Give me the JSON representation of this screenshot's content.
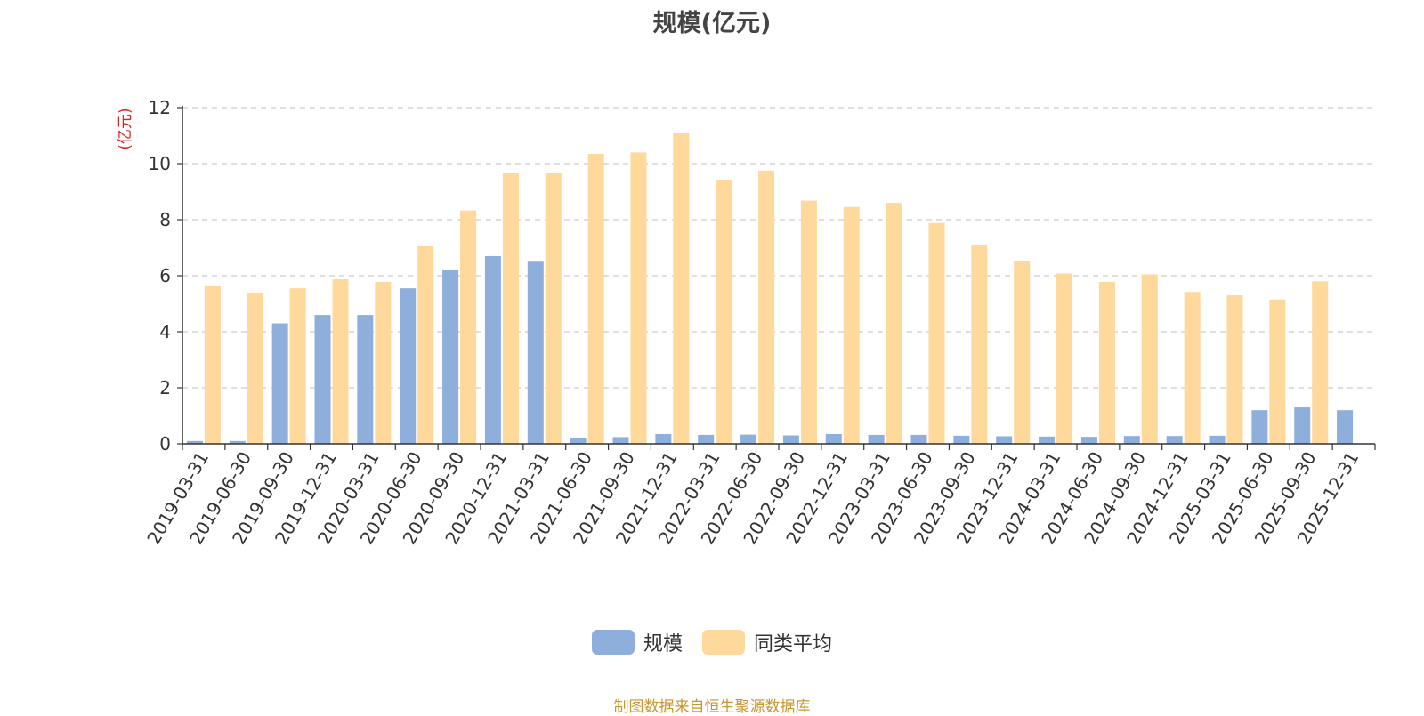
{
  "chart_data": {
    "type": "bar",
    "title": "规模(亿元)",
    "ylabel": "(亿元)",
    "ylim": [
      0,
      12
    ],
    "yticks": [
      0,
      2,
      4,
      6,
      8,
      10,
      12
    ],
    "grid": true,
    "legend_position": "bottom-center",
    "categories": [
      "2019-03-31",
      "2019-06-30",
      "2019-09-30",
      "2019-12-31",
      "2020-03-31",
      "2020-06-30",
      "2020-09-30",
      "2020-12-31",
      "2021-03-31",
      "2021-06-30",
      "2021-09-30",
      "2021-12-31",
      "2022-03-31",
      "2022-06-30",
      "2022-09-30",
      "2022-12-31",
      "2023-03-31",
      "2023-06-30",
      "2023-09-30",
      "2023-12-31",
      "2024-03-31",
      "2024-06-30",
      "2024-09-30",
      "2024-12-31",
      "2025-03-31",
      "2025-06-30",
      "2025-09-30",
      "2025-12-31"
    ],
    "series": [
      {
        "name": "规模",
        "color": "#8eaedb",
        "values": [
          0.1,
          0.1,
          4.3,
          4.6,
          4.6,
          5.55,
          6.2,
          6.7,
          6.5,
          0.22,
          0.24,
          0.35,
          0.32,
          0.33,
          0.3,
          0.35,
          0.32,
          0.32,
          0.29,
          0.27,
          0.26,
          0.25,
          0.28,
          0.28,
          0.29,
          1.2,
          1.3,
          1.2
        ]
      },
      {
        "name": "同类平均",
        "color": "#ffd89b",
        "values": [
          5.65,
          5.4,
          5.55,
          5.87,
          5.78,
          7.05,
          8.33,
          9.65,
          9.65,
          10.35,
          10.4,
          11.08,
          9.43,
          9.75,
          8.68,
          8.45,
          8.6,
          7.88,
          7.1,
          6.52,
          6.08,
          5.78,
          6.05,
          5.42,
          5.3,
          5.15,
          5.8,
          null
        ]
      }
    ]
  },
  "footer_text": "制图数据来自恒生聚源数据库"
}
